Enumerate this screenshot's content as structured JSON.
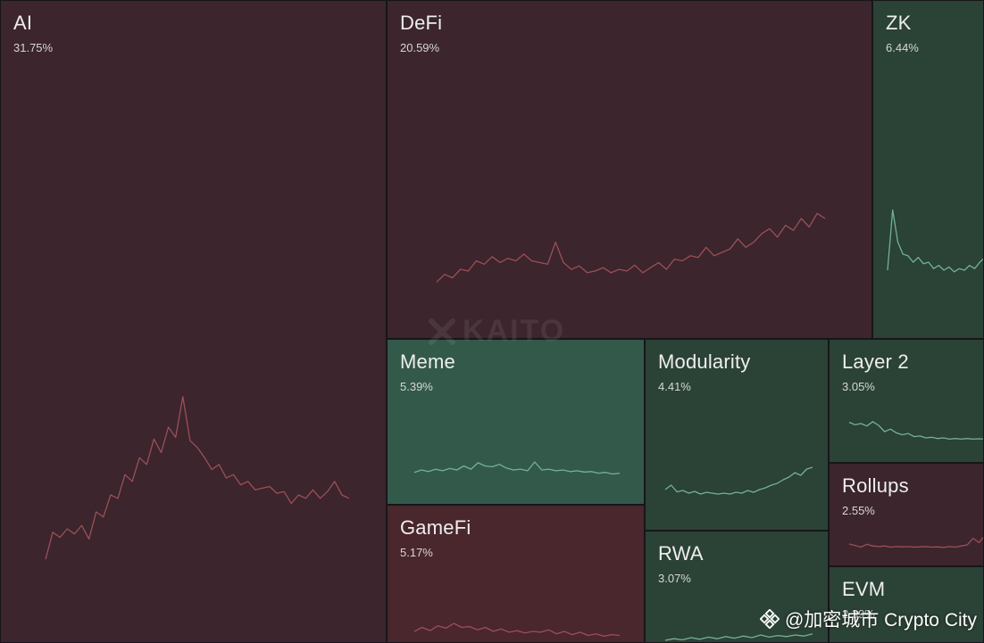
{
  "chart_data": {
    "type": "treemap",
    "colors": {
      "red_fill": "#3c252d",
      "red_fill_strong": "#4a262d",
      "green_fill": "#2b4236",
      "green_fill_strong": "#33594a",
      "red_line": "#9b4f58",
      "green_line": "#73b294"
    },
    "tiles": [
      {
        "name": "AI",
        "value_label": "31.75%",
        "value": 31.75,
        "trend": "down",
        "spark": [
          2,
          18,
          15,
          20,
          17,
          22,
          14,
          30,
          27,
          40,
          38,
          52,
          48,
          62,
          58,
          73,
          65,
          80,
          74,
          98,
          72,
          68,
          62,
          55,
          58,
          50,
          52,
          46,
          48,
          43,
          44,
          45,
          41,
          42,
          35,
          40,
          38,
          43,
          38,
          42,
          48,
          40,
          38
        ]
      },
      {
        "name": "DeFi",
        "value_label": "20.59%",
        "value": 20.59,
        "trend": "down",
        "spark": [
          5,
          14,
          10,
          20,
          18,
          30,
          26,
          35,
          28,
          33,
          30,
          38,
          30,
          28,
          26,
          52,
          28,
          20,
          24,
          16,
          18,
          22,
          16,
          20,
          18,
          25,
          16,
          22,
          28,
          20,
          32,
          30,
          36,
          34,
          46,
          36,
          40,
          44,
          56,
          46,
          52,
          62,
          68,
          58,
          72,
          66,
          80,
          70,
          86,
          80
        ]
      },
      {
        "name": "ZK",
        "value_label": "6.44%",
        "value": 6.44,
        "trend": "up",
        "spark": [
          20,
          95,
          55,
          40,
          38,
          30,
          36,
          28,
          30,
          22,
          26,
          20,
          24,
          18,
          22,
          20,
          26,
          22,
          30,
          36
        ]
      },
      {
        "name": "Meme",
        "value_label": "5.39%",
        "value": 5.39,
        "trend": "up",
        "spark": [
          14,
          20,
          16,
          22,
          18,
          24,
          20,
          30,
          22,
          38,
          30,
          28,
          34,
          25,
          20,
          22,
          18,
          40,
          20,
          22,
          18,
          20,
          16,
          18,
          15,
          16,
          12,
          14,
          10,
          12
        ]
      },
      {
        "name": "Modularity",
        "value_label": "4.41%",
        "value": 4.41,
        "trend": "up",
        "spark": [
          20,
          30,
          15,
          18,
          12,
          16,
          10,
          14,
          12,
          10,
          12,
          10,
          14,
          12,
          18,
          14,
          20,
          24,
          30,
          34,
          42,
          48,
          58,
          52,
          66,
          70
        ]
      },
      {
        "name": "Layer 2",
        "value_label": "3.05%",
        "value": 3.05,
        "trend": "up",
        "spark": [
          70,
          62,
          66,
          58,
          72,
          60,
          40,
          48,
          36,
          30,
          34,
          24,
          26,
          20,
          22,
          18,
          20,
          16,
          18,
          16,
          18,
          16,
          17,
          16
        ]
      },
      {
        "name": "Rollups",
        "value_label": "2.55%",
        "value": 2.55,
        "trend": "down",
        "spark": [
          25,
          20,
          14,
          24,
          18,
          16,
          18,
          14,
          16,
          15,
          16,
          14,
          15,
          16,
          14,
          15,
          13,
          16,
          14,
          18,
          22,
          45,
          30,
          55
        ]
      },
      {
        "name": "GameFi",
        "value_label": "5.17%",
        "value": 5.17,
        "trend": "down",
        "spark": [
          20,
          30,
          22,
          34,
          28,
          40,
          30,
          32,
          24,
          30,
          20,
          26,
          18,
          22,
          16,
          20,
          18,
          24,
          14,
          20,
          12,
          18,
          10,
          14,
          8,
          12,
          10
        ]
      },
      {
        "name": "RWA",
        "value_label": "3.07%",
        "value": 3.07,
        "trend": "up",
        "spark": [
          10,
          16,
          12,
          20,
          14,
          22,
          16,
          24,
          18,
          26,
          20,
          30,
          22,
          28,
          24,
          30,
          26,
          34
        ]
      },
      {
        "name": "EVM",
        "value_label": "2.39%",
        "value": 2.39,
        "trend": "up",
        "spark": []
      }
    ]
  },
  "watermark": {
    "text": "KAITO"
  },
  "credit": {
    "text": "@加密城市 Crypto City"
  }
}
